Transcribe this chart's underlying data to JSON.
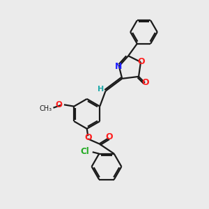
{
  "bg_color": "#ebebeb",
  "bond_color": "#1a1a1a",
  "N_color": "#2020ff",
  "O_color": "#ff2020",
  "Cl_color": "#20aa20",
  "H_color": "#20aaaa",
  "line_width": 1.6,
  "font_size": 8.5,
  "figsize": [
    3.0,
    3.0
  ],
  "dpi": 100,
  "xlim": [
    0,
    10
  ],
  "ylim": [
    0,
    10
  ]
}
